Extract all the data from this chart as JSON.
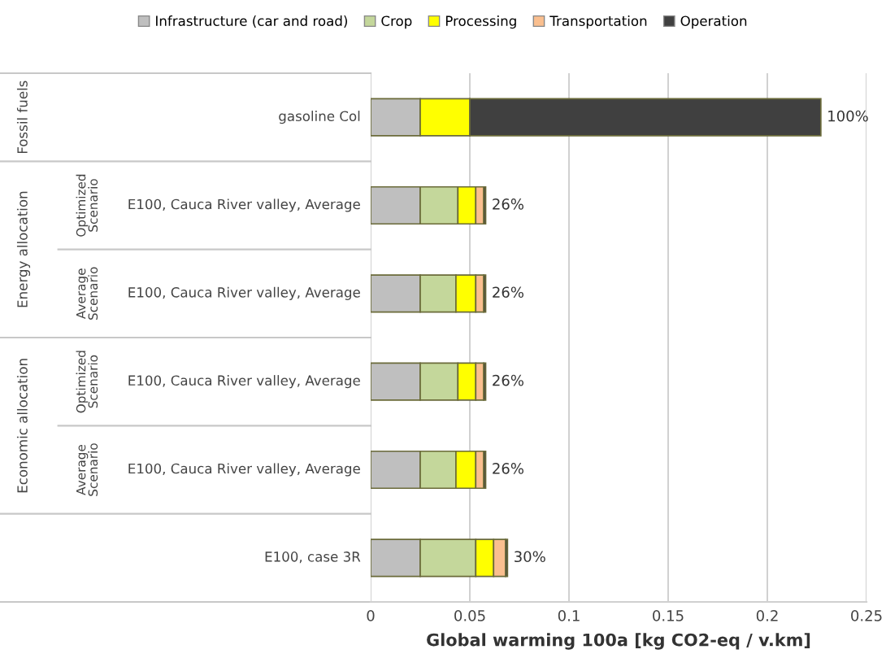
{
  "chart_data": {
    "type": "bar",
    "orientation": "horizontal",
    "stacked": true,
    "categories": [
      "gasoline Col",
      "E100, Cauca River valley, Average",
      "E100, Cauca River valley, Average",
      "E100, Cauca River valley, Average",
      "E100, Cauca River valley, Average",
      "E100, case 3R"
    ],
    "series": [
      {
        "name": "Infrastructure (car and road)",
        "color": "#bfbfbf",
        "values": [
          0.025,
          0.025,
          0.025,
          0.025,
          0.025,
          0.025
        ]
      },
      {
        "name": "Crop",
        "color": "#c4d79b",
        "values": [
          0,
          0.019,
          0.018,
          0.019,
          0.018,
          0.028
        ]
      },
      {
        "name": "Processing",
        "color": "#ffff00",
        "values": [
          0.025,
          0.009,
          0.01,
          0.009,
          0.01,
          0.009
        ]
      },
      {
        "name": "Transportation",
        "color": "#fabf8f",
        "values": [
          0,
          0.004,
          0.004,
          0.004,
          0.004,
          0.006
        ]
      },
      {
        "name": "Operation",
        "color": "#404040",
        "values": [
          0.177,
          0.001,
          0.001,
          0.001,
          0.001,
          0.001
        ]
      }
    ],
    "xlabel": "Global warming 100a [kg CO2-eq / v.km]",
    "xlim": [
      0,
      0.25
    ],
    "xticks": [
      0,
      0.05,
      0.1,
      0.15,
      0.2,
      {
        "value": 0.25,
        "label": "0.25"
      }
    ],
    "annotations": [
      "Fossil fuels",
      "Energy allocation",
      "Economic allocation",
      "Optimized Scenario",
      "Average Scenario",
      "Optimized Scenario",
      "Average Scenario",
      "100%",
      "26%",
      "26%",
      "26%",
      "26%",
      "30%"
    ],
    "grid": "x",
    "legend": "top"
  }
}
